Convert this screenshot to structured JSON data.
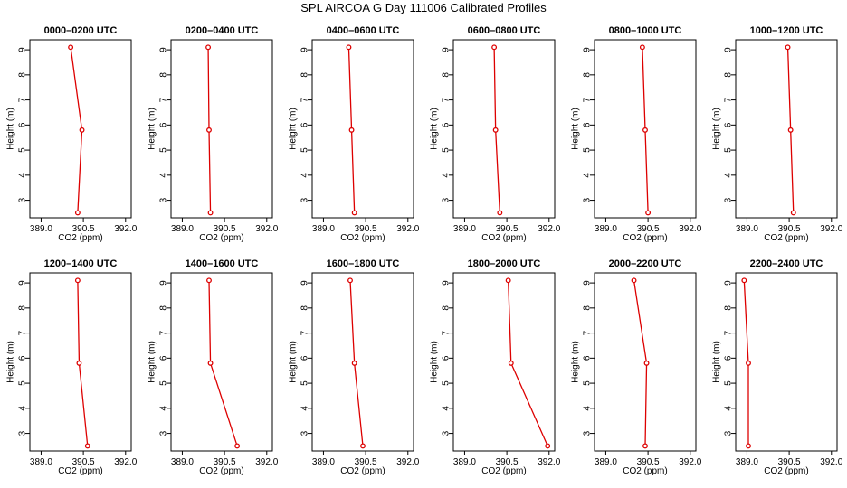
{
  "title": "SPL AIRCOA G  Day 111006  Calibrated Profiles",
  "chart_data": {
    "type": "line",
    "xlabel": "CO2 (ppm)",
    "ylabel": "Height (m)",
    "xlim": [
      388.6,
      392.2
    ],
    "ylim": [
      2.3,
      9.4
    ],
    "x_ticks": [
      "389.0",
      "390.5",
      "392.0"
    ],
    "x_tick_values": [
      389.0,
      390.5,
      392.0
    ],
    "y_ticks": [
      "3",
      "4",
      "5",
      "6",
      "7",
      "8",
      "9"
    ],
    "y_tick_values": [
      3,
      4,
      5,
      6,
      7,
      8,
      9
    ],
    "heights": [
      9.1,
      5.8,
      2.5
    ],
    "line_color": "#dd0000",
    "grid": false,
    "panels": [
      {
        "title": "0000–0200 UTC",
        "x": [
          390.05,
          390.45,
          390.3
        ]
      },
      {
        "title": "0200–0400 UTC",
        "x": [
          389.92,
          389.95,
          390.0
        ]
      },
      {
        "title": "0400–0600 UTC",
        "x": [
          389.9,
          390.0,
          390.1
        ]
      },
      {
        "title": "0600–0800 UTC",
        "x": [
          390.05,
          390.1,
          390.25
        ]
      },
      {
        "title": "0800–1000 UTC",
        "x": [
          390.3,
          390.4,
          390.5
        ]
      },
      {
        "title": "1000–1200 UTC",
        "x": [
          390.45,
          390.55,
          390.65
        ]
      },
      {
        "title": "1200–1400 UTC",
        "x": [
          390.3,
          390.35,
          390.65
        ]
      },
      {
        "title": "1400–1600 UTC",
        "x": [
          389.95,
          390.0,
          390.95
        ]
      },
      {
        "title": "1600–1800 UTC",
        "x": [
          389.95,
          390.1,
          390.4
        ]
      },
      {
        "title": "1800–2000 UTC",
        "x": [
          390.55,
          390.65,
          391.95
        ]
      },
      {
        "title": "2000–2200 UTC",
        "x": [
          390.0,
          390.45,
          390.4
        ]
      },
      {
        "title": "2200–2400 UTC",
        "x": [
          388.9,
          389.05,
          389.05
        ]
      }
    ]
  }
}
